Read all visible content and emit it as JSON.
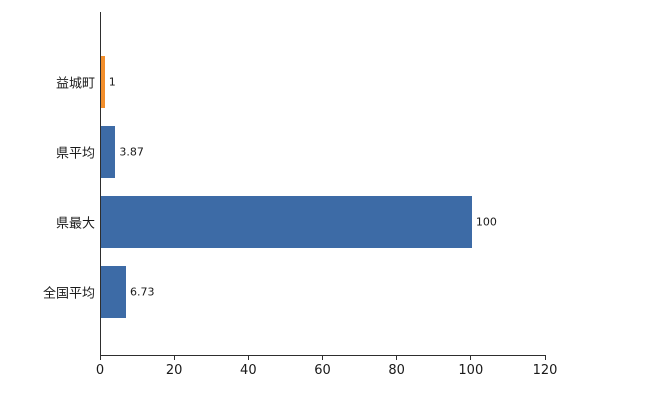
{
  "chart_data": {
    "type": "bar",
    "orientation": "horizontal",
    "title": "",
    "categories": [
      "益城町",
      "県平均",
      "県最大",
      "全国平均"
    ],
    "values": [
      1,
      3.87,
      100,
      6.73
    ],
    "value_labels": [
      "1",
      "3.87",
      "100",
      "6.73"
    ],
    "bar_colors": [
      "#f28e2b",
      "#3d6ba6",
      "#3d6ba6",
      "#3d6ba6"
    ],
    "xlim": [
      0,
      120
    ],
    "x_ticks": [
      0,
      20,
      40,
      60,
      80,
      100,
      120
    ],
    "x_tick_labels": [
      "0",
      "20",
      "40",
      "60",
      "80",
      "100",
      "120"
    ],
    "grid": false,
    "legend": false,
    "colors": {
      "highlight": "#f28e2b",
      "default": "#3d6ba6",
      "axis": "#2e2e2e",
      "text": "#1a1a1a"
    }
  }
}
